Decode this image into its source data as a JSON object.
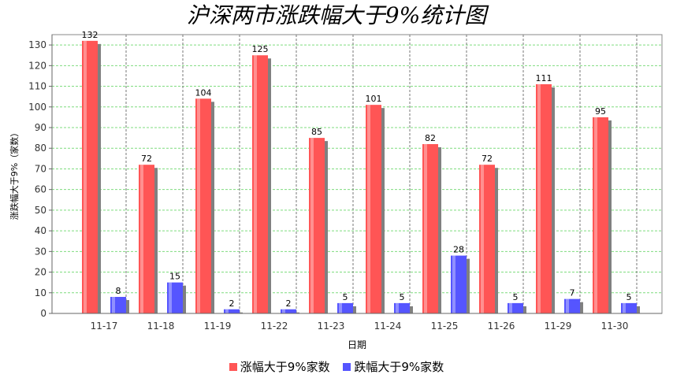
{
  "chart_data": {
    "type": "bar",
    "title": "沪深两市涨跌幅大于9%统计图",
    "xlabel": "日期",
    "ylabel": "涨跌幅大于9%（家数）",
    "categories": [
      "11-17",
      "11-18",
      "11-19",
      "11-22",
      "11-23",
      "11-24",
      "11-25",
      "11-26",
      "11-29",
      "11-30"
    ],
    "series": [
      {
        "name": "涨幅大于9%家数",
        "color": "#ff5555",
        "values": [
          132,
          72,
          104,
          125,
          85,
          101,
          82,
          72,
          111,
          95
        ]
      },
      {
        "name": "跌幅大于9%家数",
        "color": "#5555ff",
        "values": [
          8,
          15,
          2,
          2,
          5,
          5,
          28,
          5,
          7,
          5
        ]
      }
    ],
    "ylim": [
      0,
      135
    ],
    "yticks": [
      0,
      10,
      20,
      30,
      40,
      50,
      60,
      70,
      80,
      90,
      100,
      110,
      120,
      130
    ],
    "grid": true,
    "legend": "bottom"
  }
}
